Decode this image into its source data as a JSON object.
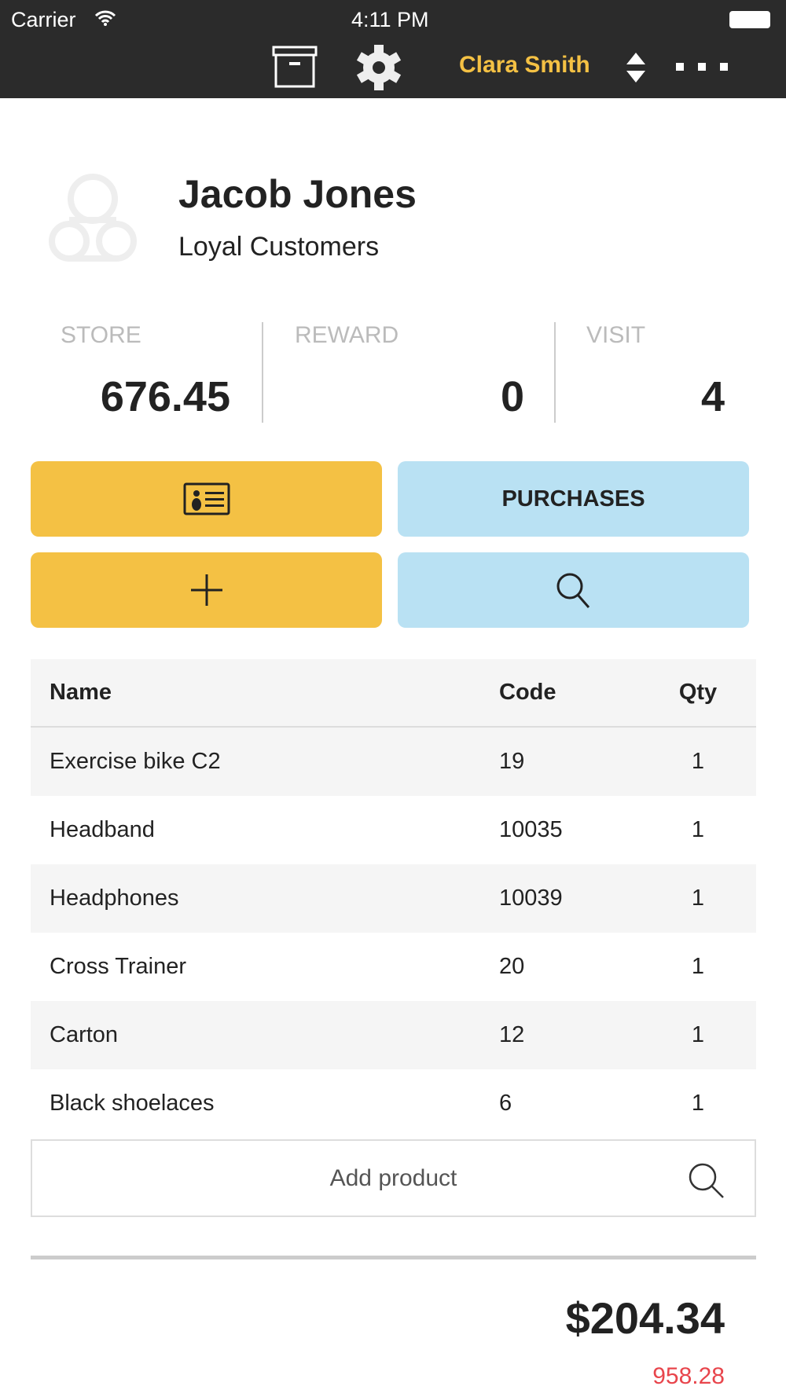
{
  "status_bar": {
    "carrier": "Carrier",
    "time": "4:11 PM"
  },
  "toolbar": {
    "user": "Clara Smith",
    "icons": [
      "archive-icon",
      "gear-icon",
      "sort-arrows-icon",
      "more-icon"
    ]
  },
  "customer": {
    "name": "Jacob Jones",
    "group": "Loyal Customers"
  },
  "stats": [
    {
      "label": "STORE",
      "value": "676.45"
    },
    {
      "label": "REWARD",
      "value": "0"
    },
    {
      "label": "VISIT",
      "value": "4"
    }
  ],
  "buttons": {
    "purchases": "PURCHASES"
  },
  "colors": {
    "yellow": "#f4c144",
    "blue": "#b9e1f3",
    "red": "#e8454c",
    "bar": "#2b2b2b"
  },
  "table": {
    "headers": [
      "Name",
      "Code",
      "Qty"
    ],
    "rows": [
      [
        "Exercise bike C2",
        "19",
        "1"
      ],
      [
        "Headband",
        "10035",
        "1"
      ],
      [
        "Headphones",
        "10039",
        "1"
      ],
      [
        "Cross Trainer",
        "20",
        "1"
      ],
      [
        "Carton",
        "12",
        "1"
      ],
      [
        "Black shoelaces",
        "6",
        "1"
      ]
    ]
  },
  "add_product": {
    "placeholder": "Add product"
  },
  "totals": {
    "total": "$204.34",
    "secondary": "958.28"
  }
}
